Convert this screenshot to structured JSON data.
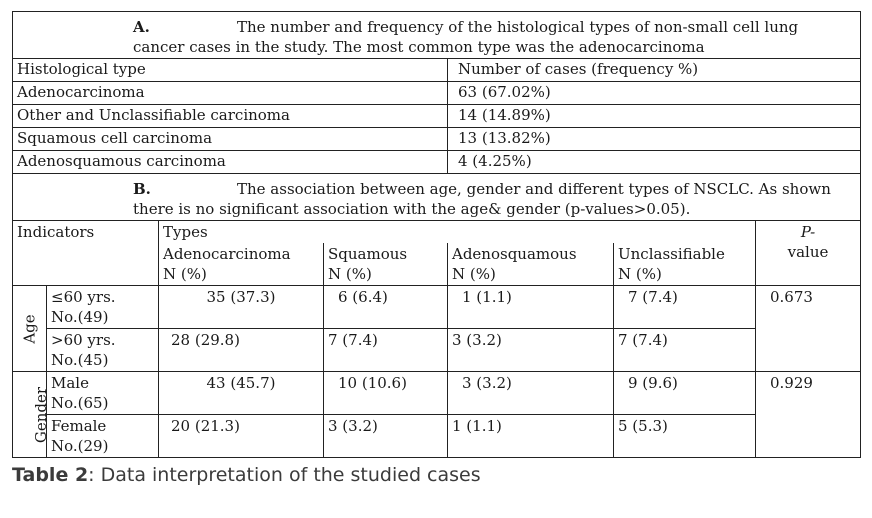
{
  "sectionA": {
    "letter": "A.",
    "title": "The number and frequency of the histological types of non-small cell lung cancer cases in the study. The most common type was the adenocarcinoma",
    "col1": "Histological type",
    "col2": "Number of cases (frequency %)",
    "rows": [
      {
        "type": "Adenocarcinoma",
        "value": "63 (67.02%)"
      },
      {
        "type": "Other and Unclassifiable carcinoma",
        "value": "14 (14.89%)"
      },
      {
        "type": "Squamous cell carcinoma",
        "value": "13 (13.82%)"
      },
      {
        "type": "Adenosquamous carcinoma",
        "value": "4 (4.25%)"
      }
    ]
  },
  "sectionB": {
    "letter": "B.",
    "title": "The association between age, gender and different types of NSCLC. As shown there is no significant association with the age& gender (p-values>0.05).",
    "indicators": "Indicators",
    "types": "Types",
    "pvalue_p": "P-",
    "pvalue_word": "value",
    "columns": [
      {
        "name": "Adenocarcinoma",
        "unit": "N (%)"
      },
      {
        "name": "Squamous",
        "unit": "N (%)"
      },
      {
        "name": "Adenosquamous",
        "unit": "N (%)"
      },
      {
        "name": "Unclassifiable",
        "unit": "N (%)"
      }
    ],
    "groups": [
      {
        "label": "Age",
        "pvalue": "0.673",
        "rows": [
          {
            "l1": "≤60 yrs.",
            "l2": "No.(49)",
            "values": [
              "35 (37.3)",
              "6 (6.4)",
              "1 (1.1)",
              "7 (7.4)"
            ]
          },
          {
            "l1": ">60 yrs.",
            "l2": "No.(45)",
            "values": [
              "28 (29.8)",
              "7 (7.4)",
              "3 (3.2)",
              "7 (7.4)"
            ]
          }
        ]
      },
      {
        "label": "Gender",
        "pvalue": "0.929",
        "rows": [
          {
            "l1": "Male",
            "l2": "No.(65)",
            "values": [
              "43 (45.7)",
              "10 (10.6)",
              "3 (3.2)",
              "9 (9.6)"
            ]
          },
          {
            "l1": "Female",
            "l2": "No.(29)",
            "values": [
              "20 (21.3)",
              "3 (3.2)",
              "1 (1.1)",
              "5 (5.3)"
            ]
          }
        ]
      }
    ]
  },
  "caption": {
    "label": "Table 2",
    "text": ": Data interpretation of the studied cases"
  }
}
